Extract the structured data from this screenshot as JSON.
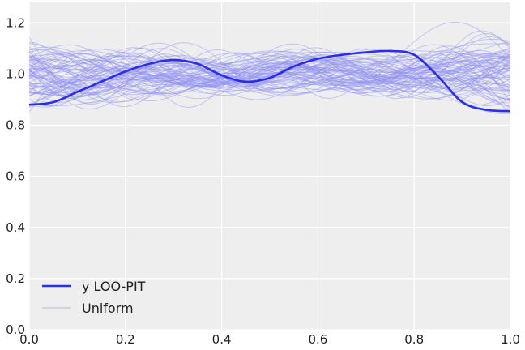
{
  "chart_data": {
    "type": "line",
    "xlim": [
      0.0,
      1.0
    ],
    "ylim": [
      0.0,
      1.28
    ],
    "grid": true,
    "legend_placement": "lower-left",
    "x_ticks": [
      "0.0",
      "0.2",
      "0.4",
      "0.6",
      "0.8",
      "1.0"
    ],
    "y_ticks": [
      "0.0",
      "0.2",
      "0.4",
      "0.6",
      "0.8",
      "1.0",
      "1.2"
    ],
    "legend": [
      {
        "label": "y LOO-PIT",
        "color": "#2a2eec",
        "style": "thick"
      },
      {
        "label": "Uniform",
        "color": "#8f91f2",
        "style": "thin"
      }
    ],
    "colors": {
      "background": "#eeeeee",
      "grid": "#ffffff",
      "loo_pit": "#2a2eec",
      "uniform": "#8f91f2"
    },
    "series": [
      {
        "name": "y LOO-PIT",
        "x": [
          0.0,
          0.05,
          0.1,
          0.15,
          0.2,
          0.25,
          0.3,
          0.35,
          0.4,
          0.45,
          0.5,
          0.55,
          0.6,
          0.65,
          0.7,
          0.75,
          0.8,
          0.85,
          0.9,
          0.95,
          1.0
        ],
        "y": [
          0.88,
          0.89,
          0.93,
          0.97,
          1.01,
          1.04,
          1.055,
          1.04,
          0.995,
          0.97,
          0.985,
          1.03,
          1.06,
          1.075,
          1.085,
          1.09,
          1.075,
          0.99,
          0.89,
          0.86,
          0.855
        ]
      }
    ],
    "uniform_band": {
      "name": "Uniform",
      "n_curves": 80,
      "typical_range": [
        0.83,
        1.23
      ],
      "center": 1.0
    }
  }
}
